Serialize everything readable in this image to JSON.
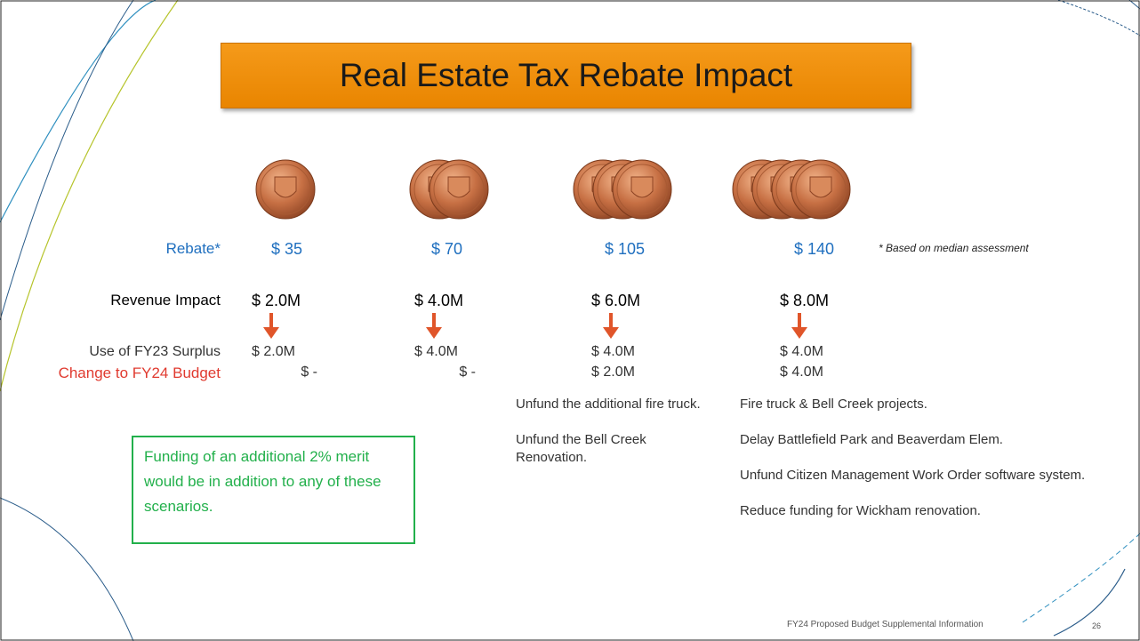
{
  "title": "Real Estate Tax Rebate Impact",
  "row_labels": [
    "Rebate*",
    "Revenue Impact",
    "Use of FY23 Surplus",
    "Change to FY24 Budget"
  ],
  "columns": [
    {
      "rebate": "$ 35",
      "revenue": "$ 2.0M",
      "surplus": "$ 2.0M",
      "change": "$ -",
      "notes": []
    },
    {
      "rebate": "$ 70",
      "revenue": "$ 4.0M",
      "surplus": "$ 4.0M",
      "change": "$ -",
      "notes": []
    },
    {
      "rebate": "$ 105",
      "revenue": "$ 6.0M",
      "surplus": "$ 4.0M",
      "change": "$ 2.0M",
      "notes": [
        "Unfund the additional fire truck.",
        "Unfund the Bell Creek Renovation."
      ]
    },
    {
      "rebate": "$ 140",
      "revenue": "$ 8.0M",
      "surplus": "$ 4.0M",
      "change": "$ 4.0M",
      "notes": [
        "Fire truck & Bell Creek projects.",
        "Delay Battlefield Park and Beaverdam Elem.",
        "Unfund Citizen Management Work Order software system.",
        "Reduce funding for Wickham renovation."
      ]
    }
  ],
  "footnote": "* Based on median assessment",
  "callout": "Funding of an additional 2% merit would be in addition to any of these scenarios.",
  "footer": "FY24 Proposed Budget Supplemental Information",
  "page_number": "26"
}
